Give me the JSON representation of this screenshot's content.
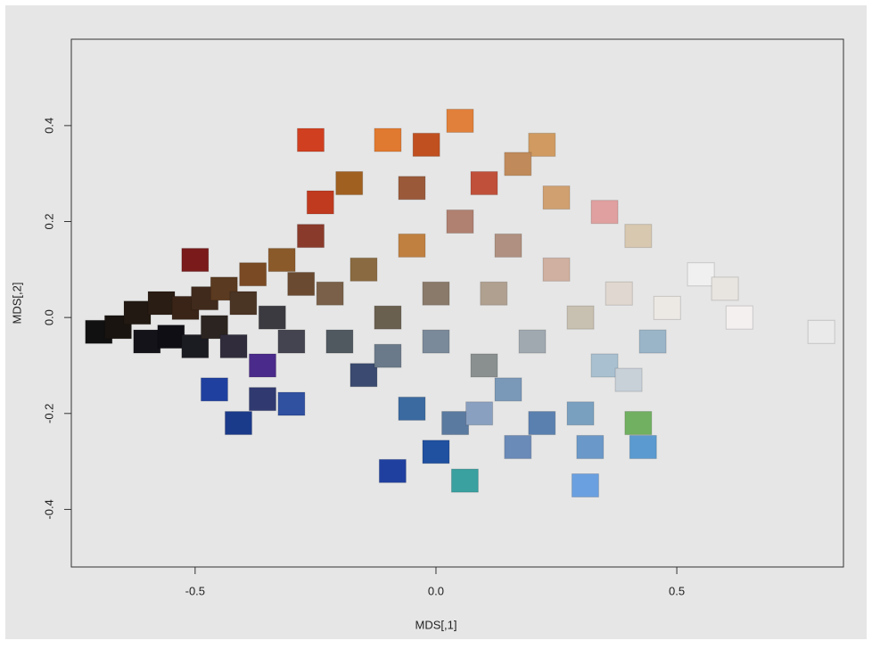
{
  "chart_data": {
    "type": "scatter",
    "xlabel": "MDS[,1]",
    "ylabel": "MDS[,2]",
    "xlim": [
      -0.757,
      0.846
    ],
    "ylim": [
      -0.52,
      0.58
    ],
    "xticks": [
      -0.5,
      {
        "value": 0,
        "label": "0.0"
      },
      0.5
    ],
    "yticks": [
      -0.4,
      -0.2,
      {
        "value": 0,
        "label": "0.0"
      },
      0.2,
      0.4
    ],
    "series": [
      {
        "x": [
          -0.7,
          -0.66,
          -0.62,
          -0.6,
          -0.57,
          -0.55,
          -0.52,
          -0.5,
          -0.48,
          -0.46,
          -0.44,
          -0.42,
          -0.4,
          -0.38,
          -0.36,
          -0.34,
          -0.32,
          -0.3,
          -0.28,
          -0.26,
          -0.24,
          -0.5,
          -0.46,
          -0.41,
          -0.36,
          -0.26,
          -0.18,
          -0.1,
          -0.02,
          0.05,
          0.22,
          0.17,
          0.25,
          0.35,
          0.42,
          0.55,
          0.6,
          0.63,
          0.8,
          0.45,
          0.42,
          0.43,
          0.31,
          0.17,
          0.06,
          0.0,
          -0.09,
          -0.05,
          0.04,
          0.09,
          0.22,
          0.3,
          0.32,
          0.1,
          0.2,
          0.3,
          0.38,
          0.48,
          0.12,
          0.0,
          -0.1,
          -0.15,
          -0.05,
          0.05,
          0.15,
          0.1,
          -0.05,
          -0.2,
          -0.15,
          -0.1,
          0.0,
          -0.22,
          0.25,
          0.35,
          0.4,
          0.15,
          -0.3
        ],
        "values": [
          -0.03,
          -0.02,
          0.01,
          -0.05,
          0.03,
          -0.04,
          0.02,
          -0.06,
          0.04,
          -0.02,
          0.06,
          -0.06,
          0.03,
          0.09,
          -0.1,
          0.0,
          0.12,
          -0.05,
          0.07,
          0.17,
          0.24,
          0.12,
          -0.15,
          -0.22,
          -0.17,
          0.37,
          0.28,
          0.37,
          0.36,
          0.41,
          0.36,
          0.32,
          0.25,
          0.22,
          0.17,
          0.09,
          0.06,
          0.0,
          -0.03,
          -0.05,
          -0.22,
          -0.27,
          -0.35,
          -0.27,
          -0.34,
          -0.28,
          -0.32,
          -0.19,
          -0.22,
          -0.2,
          -0.22,
          -0.2,
          -0.27,
          -0.1,
          -0.05,
          0.0,
          0.05,
          0.02,
          0.05,
          0.05,
          0.0,
          0.1,
          0.15,
          0.2,
          0.15,
          0.28,
          0.27,
          -0.05,
          -0.12,
          -0.08,
          -0.05,
          0.05,
          0.1,
          -0.1,
          -0.13,
          -0.15,
          -0.18
        ],
        "colors": [
          "#111111",
          "#1a1410",
          "#221a12",
          "#15131a",
          "#2a1d14",
          "#0e0e14",
          "#3a2418",
          "#1b1b22",
          "#402a1c",
          "#2c2420",
          "#5a3a20",
          "#302c3c",
          "#4a3424",
          "#7a4a24",
          "#4a2a8a",
          "#3a3a40",
          "#8a5a2a",
          "#444450",
          "#6a4a30",
          "#8a3a2a",
          "#c03a20",
          "#7a1a1a",
          "#2040a0",
          "#1a3a8a",
          "#303a70",
          "#d04020",
          "#a06020",
          "#e07a30",
          "#c05020",
          "#e0803a",
          "#d09a60",
          "#c08a5a",
          "#d0a070",
          "#e0a0a0",
          "#d8c8b0",
          "#f0f0f0",
          "#e8e4e0",
          "#f4f0f0",
          "#eaeaea",
          "#9ab4c8",
          "#70b060",
          "#5a9ad0",
          "#6aa0e0",
          "#6a8ab8",
          "#3aa0a0",
          "#2050a0",
          "#2040a0",
          "#3a6aa0",
          "#5a7aa0",
          "#8aa0c0",
          "#5a80b0",
          "#7aa0c0",
          "#6a98c8",
          "#8a9090",
          "#a0a8b0",
          "#c8c0b0",
          "#e0d8d0",
          "#ece8e4",
          "#b0a090",
          "#8a7a6a",
          "#6a6050",
          "#8a6a40",
          "#c08040",
          "#b08070",
          "#b09080",
          "#c0503a",
          "#9a5a3a",
          "#505860",
          "#3a4a70",
          "#6a7a8a",
          "#7a8a9a",
          "#7a6048",
          "#d0b0a0",
          "#a8c0d0",
          "#c8d0d8",
          "#7a98b8",
          "#3050a0"
        ]
      }
    ]
  }
}
